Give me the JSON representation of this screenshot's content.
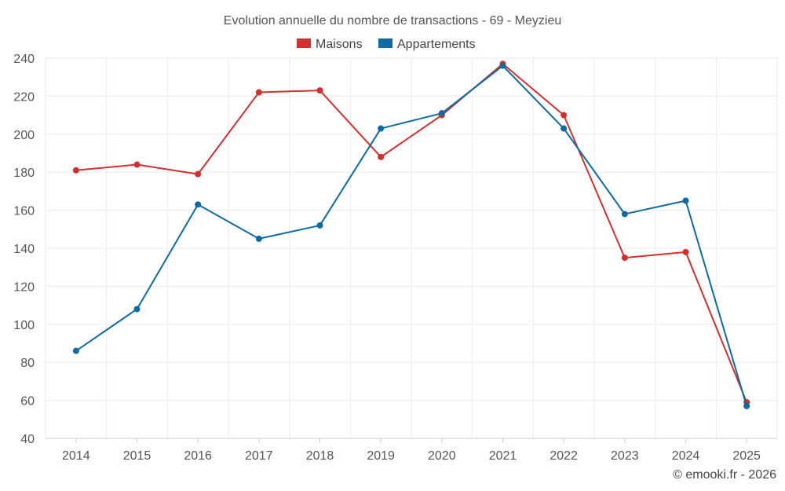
{
  "chart_data": {
    "type": "line",
    "title": "Evolution annuelle du nombre de transactions - 69 - Meyzieu",
    "categories": [
      "2014",
      "2015",
      "2016",
      "2017",
      "2018",
      "2019",
      "2020",
      "2021",
      "2022",
      "2023",
      "2024",
      "2025"
    ],
    "series": [
      {
        "name": "Maisons",
        "color": "#d32f2f",
        "values": [
          181,
          184,
          179,
          222,
          223,
          188,
          210,
          237,
          210,
          135,
          138,
          59
        ]
      },
      {
        "name": "Appartements",
        "color": "#0d6aa3",
        "values": [
          86,
          108,
          163,
          145,
          152,
          203,
          211,
          236,
          203,
          158,
          165,
          57
        ]
      }
    ],
    "y_ticks": [
      "40",
      "60",
      "80",
      "100",
      "120",
      "140",
      "160",
      "180",
      "200",
      "220",
      "240"
    ],
    "ylim": [
      40,
      240
    ],
    "xlabel": "",
    "ylabel": "",
    "legend_position": "top-center",
    "grid": true
  },
  "credit": "© emooki.fr - 2026"
}
